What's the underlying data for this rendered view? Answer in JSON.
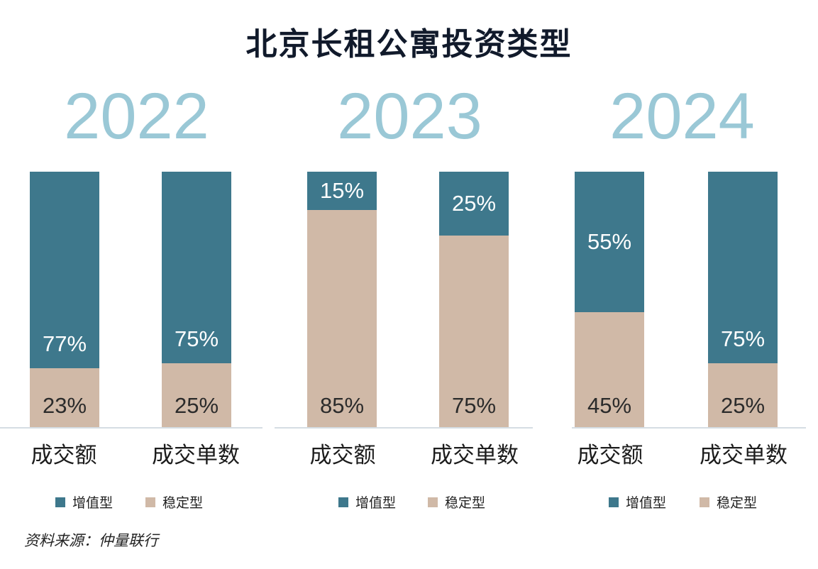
{
  "title": "北京长租公寓投资类型",
  "source": "资料来源：仲量联行",
  "colors": {
    "growth": "#3e788c",
    "stable": "#d0b9a7",
    "year": "#9ac8d6"
  },
  "chart_data": [
    {
      "type": "bar",
      "stacked": true,
      "title": "2022",
      "categories": [
        "成交额",
        "成交单数"
      ],
      "series": [
        {
          "name": "增值型",
          "values": [
            77,
            75
          ]
        },
        {
          "name": "稳定型",
          "values": [
            23,
            25
          ]
        }
      ],
      "labels": {
        "growth": [
          "77%",
          "75%"
        ],
        "stable": [
          "23%",
          "25%"
        ]
      },
      "legend": [
        "增值型",
        "稳定型"
      ],
      "ylim": [
        0,
        100
      ]
    },
    {
      "type": "bar",
      "stacked": true,
      "title": "2023",
      "categories": [
        "成交额",
        "成交单数"
      ],
      "series": [
        {
          "name": "增值型",
          "values": [
            15,
            25
          ]
        },
        {
          "name": "稳定型",
          "values": [
            85,
            75
          ]
        }
      ],
      "labels": {
        "growth": [
          "15%",
          "25%"
        ],
        "stable": [
          "85%",
          "75%"
        ]
      },
      "legend": [
        "增值型",
        "稳定型"
      ],
      "ylim": [
        0,
        100
      ]
    },
    {
      "type": "bar",
      "stacked": true,
      "title": "2024",
      "categories": [
        "成交额",
        "成交单数"
      ],
      "series": [
        {
          "name": "增值型",
          "values": [
            55,
            75
          ]
        },
        {
          "name": "稳定型",
          "values": [
            45,
            25
          ]
        }
      ],
      "labels": {
        "growth": [
          "55%",
          "75%"
        ],
        "stable": [
          "45%",
          "25%"
        ]
      },
      "legend": [
        "增值型",
        "稳定型"
      ],
      "ylim": [
        0,
        100
      ]
    }
  ]
}
